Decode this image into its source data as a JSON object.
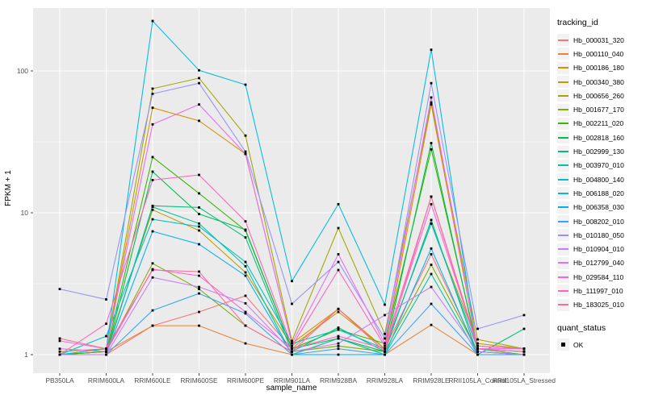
{
  "chart_data": {
    "type": "line",
    "title": "",
    "xlabel": "sample_name",
    "ylabel": "FPKM + 1",
    "y_scale": "log10",
    "y_ticks": [
      1,
      10,
      100
    ],
    "y_minor": [
      3.162,
      31.62
    ],
    "ylim": [
      0.74,
      280
    ],
    "grid": "on",
    "legend_position": "right",
    "legend_title": "tracking_id",
    "legend2_title": "quant_status",
    "quant_status_entries": [
      {
        "label": "OK",
        "marker": "black-square"
      }
    ],
    "panel_bg": "#EBEBEB",
    "grid_color": "#FFFFFF",
    "tick_label_color": "#4D4D4D",
    "point_color": "#000000",
    "x_categories": [
      "PB350LA",
      "RRIM600LA",
      "RRIM600LE",
      "RRIM600SE",
      "RRIM600PE",
      "RRIM901LA",
      "RRIM928BA",
      "RRIM928LA",
      "RRIM928LE",
      "RRII105LA_Control",
      "RRII105LA_Stressed"
    ],
    "series": [
      {
        "name": "Hb_000031_320",
        "color": "#F8766D",
        "values": [
          1.0,
          1.0,
          1.6,
          2.0,
          2.6,
          1.1,
          2.1,
          1.1,
          5.1,
          1.05,
          1.0
        ]
      },
      {
        "name": "Hb_000110_040",
        "color": "#EA8331",
        "values": [
          1.0,
          1.05,
          1.6,
          1.6,
          1.2,
          1.0,
          1.3,
          1.0,
          1.62,
          1.0,
          1.0
        ]
      },
      {
        "name": "Hb_000186_180",
        "color": "#D89000",
        "values": [
          1.0,
          1.1,
          55,
          44.5,
          26,
          1.2,
          2.1,
          1.1,
          58,
          1.1,
          1.05
        ]
      },
      {
        "name": "Hb_000340_380",
        "color": "#C09B00",
        "values": [
          1.0,
          1.05,
          10.5,
          7.5,
          3.8,
          1.15,
          2.0,
          1.1,
          8.4,
          1.2,
          1.1
        ]
      },
      {
        "name": "Hb_000656_260",
        "color": "#A3A500",
        "values": [
          1.05,
          1.1,
          75,
          89,
          35,
          1.25,
          7.8,
          1.4,
          60,
          1.28,
          1.1
        ]
      },
      {
        "name": "Hb_001677_170",
        "color": "#7CAE00",
        "values": [
          1.0,
          1.05,
          4.4,
          2.9,
          1.6,
          1.05,
          1.15,
          1.05,
          4.3,
          1.05,
          1.0
        ]
      },
      {
        "name": "Hb_002211_020",
        "color": "#39B600",
        "values": [
          1.0,
          1.05,
          24.7,
          13.7,
          7.5,
          1.1,
          1.5,
          1.2,
          28,
          1.1,
          1.0
        ]
      },
      {
        "name": "Hb_002818_160",
        "color": "#00BB4E",
        "values": [
          1.0,
          1.0,
          19.5,
          9.8,
          7.6,
          1.1,
          1.3,
          1.05,
          31,
          1.05,
          1.0
        ]
      },
      {
        "name": "Hb_002999_130",
        "color": "#00BF7D",
        "values": [
          1.0,
          1.0,
          11.2,
          10.9,
          6.7,
          1.05,
          1.55,
          1.05,
          8.9,
          1.0,
          1.52
        ]
      },
      {
        "name": "Hb_003970_010",
        "color": "#00C1A3",
        "values": [
          1.0,
          1.0,
          11.0,
          8.4,
          4.2,
          1.0,
          1.3,
          1.0,
          3.7,
          1.0,
          1.0
        ]
      },
      {
        "name": "Hb_004800_140",
        "color": "#00BFC4",
        "values": [
          1.0,
          1.35,
          9.0,
          8.0,
          4.5,
          1.2,
          1.5,
          1.1,
          8.4,
          1.1,
          1.05
        ]
      },
      {
        "name": "Hb_006188_020",
        "color": "#00BAE0",
        "values": [
          1.0,
          1.1,
          225,
          101,
          80,
          3.3,
          11.5,
          2.25,
          141,
          1.05,
          1.0
        ]
      },
      {
        "name": "Hb_006358_030",
        "color": "#00B0F6",
        "values": [
          1.0,
          1.0,
          7.4,
          6.0,
          3.6,
          1.0,
          1.0,
          1.0,
          5.6,
          1.0,
          1.0
        ]
      },
      {
        "name": "Hb_008202_010",
        "color": "#35A2FF",
        "values": [
          1.0,
          1.0,
          2.05,
          2.7,
          1.95,
          1.0,
          1.1,
          1.0,
          2.28,
          1.0,
          1.0
        ]
      },
      {
        "name": "Hb_010180_050",
        "color": "#9590FF",
        "values": [
          2.9,
          2.45,
          69,
          82,
          27,
          2.28,
          4.5,
          1.3,
          82,
          1.52,
          1.9
        ]
      },
      {
        "name": "Hb_010904_010",
        "color": "#C77CFF",
        "values": [
          1.0,
          1.0,
          3.5,
          3.0,
          2.3,
          1.05,
          1.2,
          1.9,
          3.0,
          1.05,
          1.0
        ]
      },
      {
        "name": "Hb_012799_040",
        "color": "#E76BF3",
        "values": [
          1.25,
          1.1,
          42,
          58,
          26,
          1.2,
          5.1,
          1.2,
          65,
          1.1,
          1.1
        ]
      },
      {
        "name": "Hb_029584_110",
        "color": "#FA62DB",
        "values": [
          1.1,
          1.05,
          4.0,
          3.6,
          2.0,
          1.1,
          1.35,
          1.1,
          11.5,
          1.15,
          1.1
        ]
      },
      {
        "name": "Hb_111997_010",
        "color": "#FF62BC",
        "values": [
          1.0,
          1.65,
          17,
          18.5,
          8.7,
          1.15,
          3.95,
          1.15,
          13,
          1.1,
          1.05
        ]
      },
      {
        "name": "Hb_183025_010",
        "color": "#FF6A98",
        "values": [
          1.3,
          1.1,
          3.95,
          3.85,
          1.6,
          1.05,
          2.1,
          1.05,
          13,
          1.15,
          1.1
        ]
      }
    ]
  }
}
